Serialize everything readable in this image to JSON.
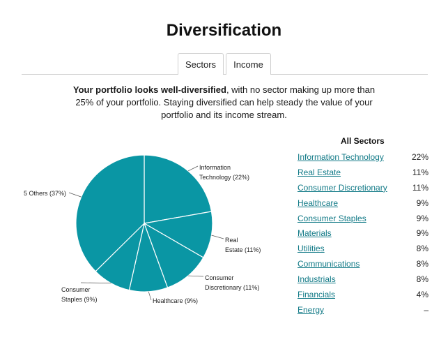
{
  "page": {
    "title": "Diversification"
  },
  "tabs": [
    {
      "label": "Sectors",
      "active": true
    },
    {
      "label": "Income",
      "active": false
    }
  ],
  "summary": {
    "bold": "Your portfolio looks well-diversified",
    "rest": ", with no sector making up more than 25% of your portfolio. Staying diversified can help steady the value of your portfolio and its income stream."
  },
  "legend": {
    "title": "All Sectors",
    "items": [
      {
        "label": "Information Technology",
        "value": "22%"
      },
      {
        "label": "Real Estate",
        "value": "11%"
      },
      {
        "label": "Consumer Discretionary",
        "value": "11%"
      },
      {
        "label": "Healthcare",
        "value": "9%"
      },
      {
        "label": "Consumer Staples",
        "value": "9%"
      },
      {
        "label": "Materials",
        "value": "9%"
      },
      {
        "label": "Utilities",
        "value": "8%"
      },
      {
        "label": "Communications",
        "value": "8%"
      },
      {
        "label": "Industrials",
        "value": "8%"
      },
      {
        "label": "Financials",
        "value": "4%"
      },
      {
        "label": "Energy",
        "value": "–"
      }
    ]
  },
  "colors": {
    "slice": "#0a96a4",
    "link": "#127a87",
    "divider": "#cfcfcf"
  },
  "chart_data": {
    "type": "pie",
    "slices": [
      {
        "label_lines": [
          "Information",
          "Technology (22%)"
        ],
        "value": 22
      },
      {
        "label_lines": [
          "Real",
          "Estate (11%)"
        ],
        "value": 11
      },
      {
        "label_lines": [
          "Consumer",
          "Discretionary (11%)"
        ],
        "value": 11
      },
      {
        "label_lines": [
          "Healthcare (9%)"
        ],
        "value": 9
      },
      {
        "label_lines": [
          "Consumer",
          "Staples (9%)"
        ],
        "value": 9
      },
      {
        "label_lines": [
          "5 Others (37%)"
        ],
        "value": 37
      }
    ]
  }
}
